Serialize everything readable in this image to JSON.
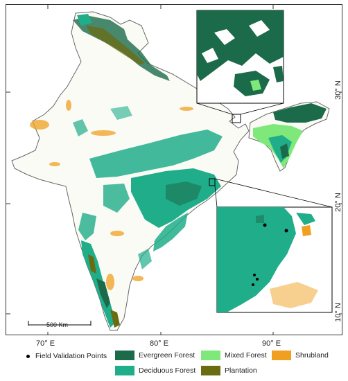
{
  "map": {
    "longitude_ticks": [
      "70° E",
      "80° E",
      "90° E"
    ],
    "latitude_ticks": [
      "30° N",
      "20° N",
      "10° N"
    ],
    "scale_bar_label": "500 Km"
  },
  "legend": {
    "items": [
      {
        "label": "Field Validation Points",
        "symbol": "dot",
        "color": "#000000"
      },
      {
        "label": "Evergreen Forest",
        "symbol": "swatch",
        "color": "#1b6b4a"
      },
      {
        "label": "Mixed Forest",
        "symbol": "swatch",
        "color": "#7ee87a"
      },
      {
        "label": "Shrubland",
        "symbol": "swatch",
        "color": "#f0a020"
      },
      {
        "label": "Deciduous Forest",
        "symbol": "swatch",
        "color": "#20ad8a"
      },
      {
        "label": "Plantation",
        "symbol": "swatch",
        "color": "#6b6b12"
      }
    ]
  },
  "colors": {
    "evergreen": "#1b6b4a",
    "deciduous": "#20ad8a",
    "mixed": "#7ee87a",
    "plantation": "#6b6b12",
    "shrubland": "#f0a020",
    "boundary": "#666666"
  }
}
